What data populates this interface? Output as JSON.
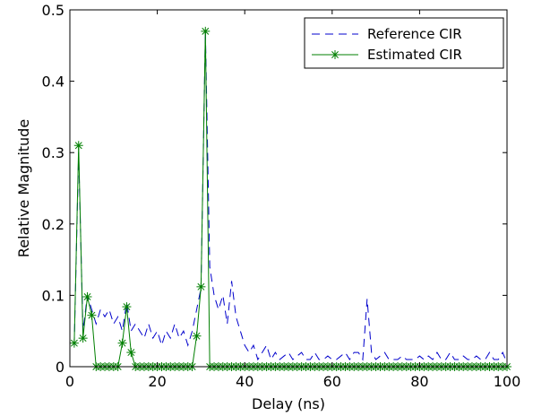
{
  "chart_data": {
    "type": "line",
    "xlabel": "Delay (ns)",
    "ylabel": "Relative Magnitude",
    "xlim": [
      0,
      100
    ],
    "ylim": [
      0,
      0.5
    ],
    "xticks": [
      0,
      20,
      40,
      60,
      80,
      100
    ],
    "yticks": [
      0,
      0.1,
      0.2,
      0.3,
      0.4,
      0.5
    ],
    "grid": false,
    "legend_position": "top-right",
    "series": [
      {
        "name": "Reference CIR",
        "color": "#0000cc",
        "style": "dashed",
        "x": [
          1,
          2,
          3,
          4,
          5,
          6,
          7,
          8,
          9,
          10,
          11,
          12,
          13,
          14,
          15,
          16,
          17,
          18,
          19,
          20,
          21,
          22,
          23,
          24,
          25,
          26,
          27,
          28,
          29,
          30,
          31,
          32,
          33,
          34,
          35,
          36,
          37,
          38,
          39,
          40,
          41,
          42,
          43,
          44,
          45,
          46,
          47,
          48,
          49,
          50,
          51,
          52,
          53,
          54,
          55,
          56,
          57,
          58,
          59,
          60,
          61,
          62,
          63,
          64,
          65,
          66,
          67,
          68,
          69,
          70,
          71,
          72,
          73,
          74,
          75,
          76,
          77,
          78,
          79,
          80,
          81,
          82,
          83,
          84,
          85,
          86,
          87,
          88,
          89,
          90,
          91,
          92,
          93,
          94,
          95,
          96,
          97,
          98,
          99,
          100
        ],
        "values": [
          0.03,
          0.3,
          0.05,
          0.1,
          0.08,
          0.06,
          0.08,
          0.07,
          0.08,
          0.06,
          0.07,
          0.05,
          0.09,
          0.05,
          0.06,
          0.05,
          0.04,
          0.06,
          0.04,
          0.05,
          0.03,
          0.05,
          0.04,
          0.06,
          0.04,
          0.05,
          0.03,
          0.05,
          0.08,
          0.11,
          0.47,
          0.14,
          0.1,
          0.08,
          0.1,
          0.06,
          0.12,
          0.07,
          0.05,
          0.03,
          0.02,
          0.03,
          0.01,
          0.02,
          0.03,
          0.01,
          0.02,
          0.01,
          0.015,
          0.02,
          0.01,
          0.015,
          0.02,
          0.01,
          0.01,
          0.02,
          0.01,
          0.01,
          0.015,
          0.01,
          0.01,
          0.015,
          0.02,
          0.01,
          0.02,
          0.02,
          0.01,
          0.095,
          0.02,
          0.01,
          0.015,
          0.02,
          0.01,
          0.01,
          0.01,
          0.015,
          0.01,
          0.01,
          0.01,
          0.015,
          0.01,
          0.015,
          0.01,
          0.02,
          0.01,
          0.01,
          0.02,
          0.01,
          0.01,
          0.015,
          0.01,
          0.01,
          0.015,
          0.01,
          0.01,
          0.02,
          0.01,
          0.01,
          0.02,
          0.005
        ]
      },
      {
        "name": "Estimated CIR",
        "color": "#007f00",
        "style": "solid-star",
        "x": [
          1,
          2,
          3,
          4,
          5,
          6,
          7,
          8,
          9,
          10,
          11,
          12,
          13,
          14,
          15,
          16,
          17,
          18,
          19,
          20,
          21,
          22,
          23,
          24,
          25,
          26,
          27,
          28,
          29,
          30,
          31,
          32,
          33,
          34,
          35,
          36,
          37,
          38,
          39,
          40,
          41,
          42,
          43,
          44,
          45,
          46,
          47,
          48,
          49,
          50,
          51,
          52,
          53,
          54,
          55,
          56,
          57,
          58,
          59,
          60,
          61,
          62,
          63,
          64,
          65,
          66,
          67,
          68,
          69,
          70,
          71,
          72,
          73,
          74,
          75,
          76,
          77,
          78,
          79,
          80,
          81,
          82,
          83,
          84,
          85,
          86,
          87,
          88,
          89,
          90,
          91,
          92,
          93,
          94,
          95,
          96,
          97,
          98,
          99,
          100
        ],
        "values": [
          0.033,
          0.31,
          0.04,
          0.098,
          0.072,
          0,
          0,
          0,
          0,
          0,
          0,
          0.033,
          0.084,
          0.02,
          0,
          0,
          0,
          0,
          0,
          0,
          0,
          0,
          0,
          0,
          0,
          0,
          0,
          0,
          0.043,
          0.112,
          0.47,
          0,
          0,
          0,
          0,
          0,
          0,
          0,
          0,
          0,
          0,
          0,
          0,
          0,
          0,
          0,
          0,
          0,
          0,
          0,
          0,
          0,
          0,
          0,
          0,
          0,
          0,
          0,
          0,
          0,
          0,
          0,
          0,
          0,
          0,
          0,
          0,
          0,
          0,
          0,
          0,
          0,
          0,
          0,
          0,
          0,
          0,
          0,
          0,
          0,
          0,
          0,
          0,
          0,
          0,
          0,
          0,
          0,
          0,
          0,
          0,
          0,
          0,
          0,
          0,
          0,
          0,
          0,
          0,
          0
        ]
      }
    ]
  }
}
